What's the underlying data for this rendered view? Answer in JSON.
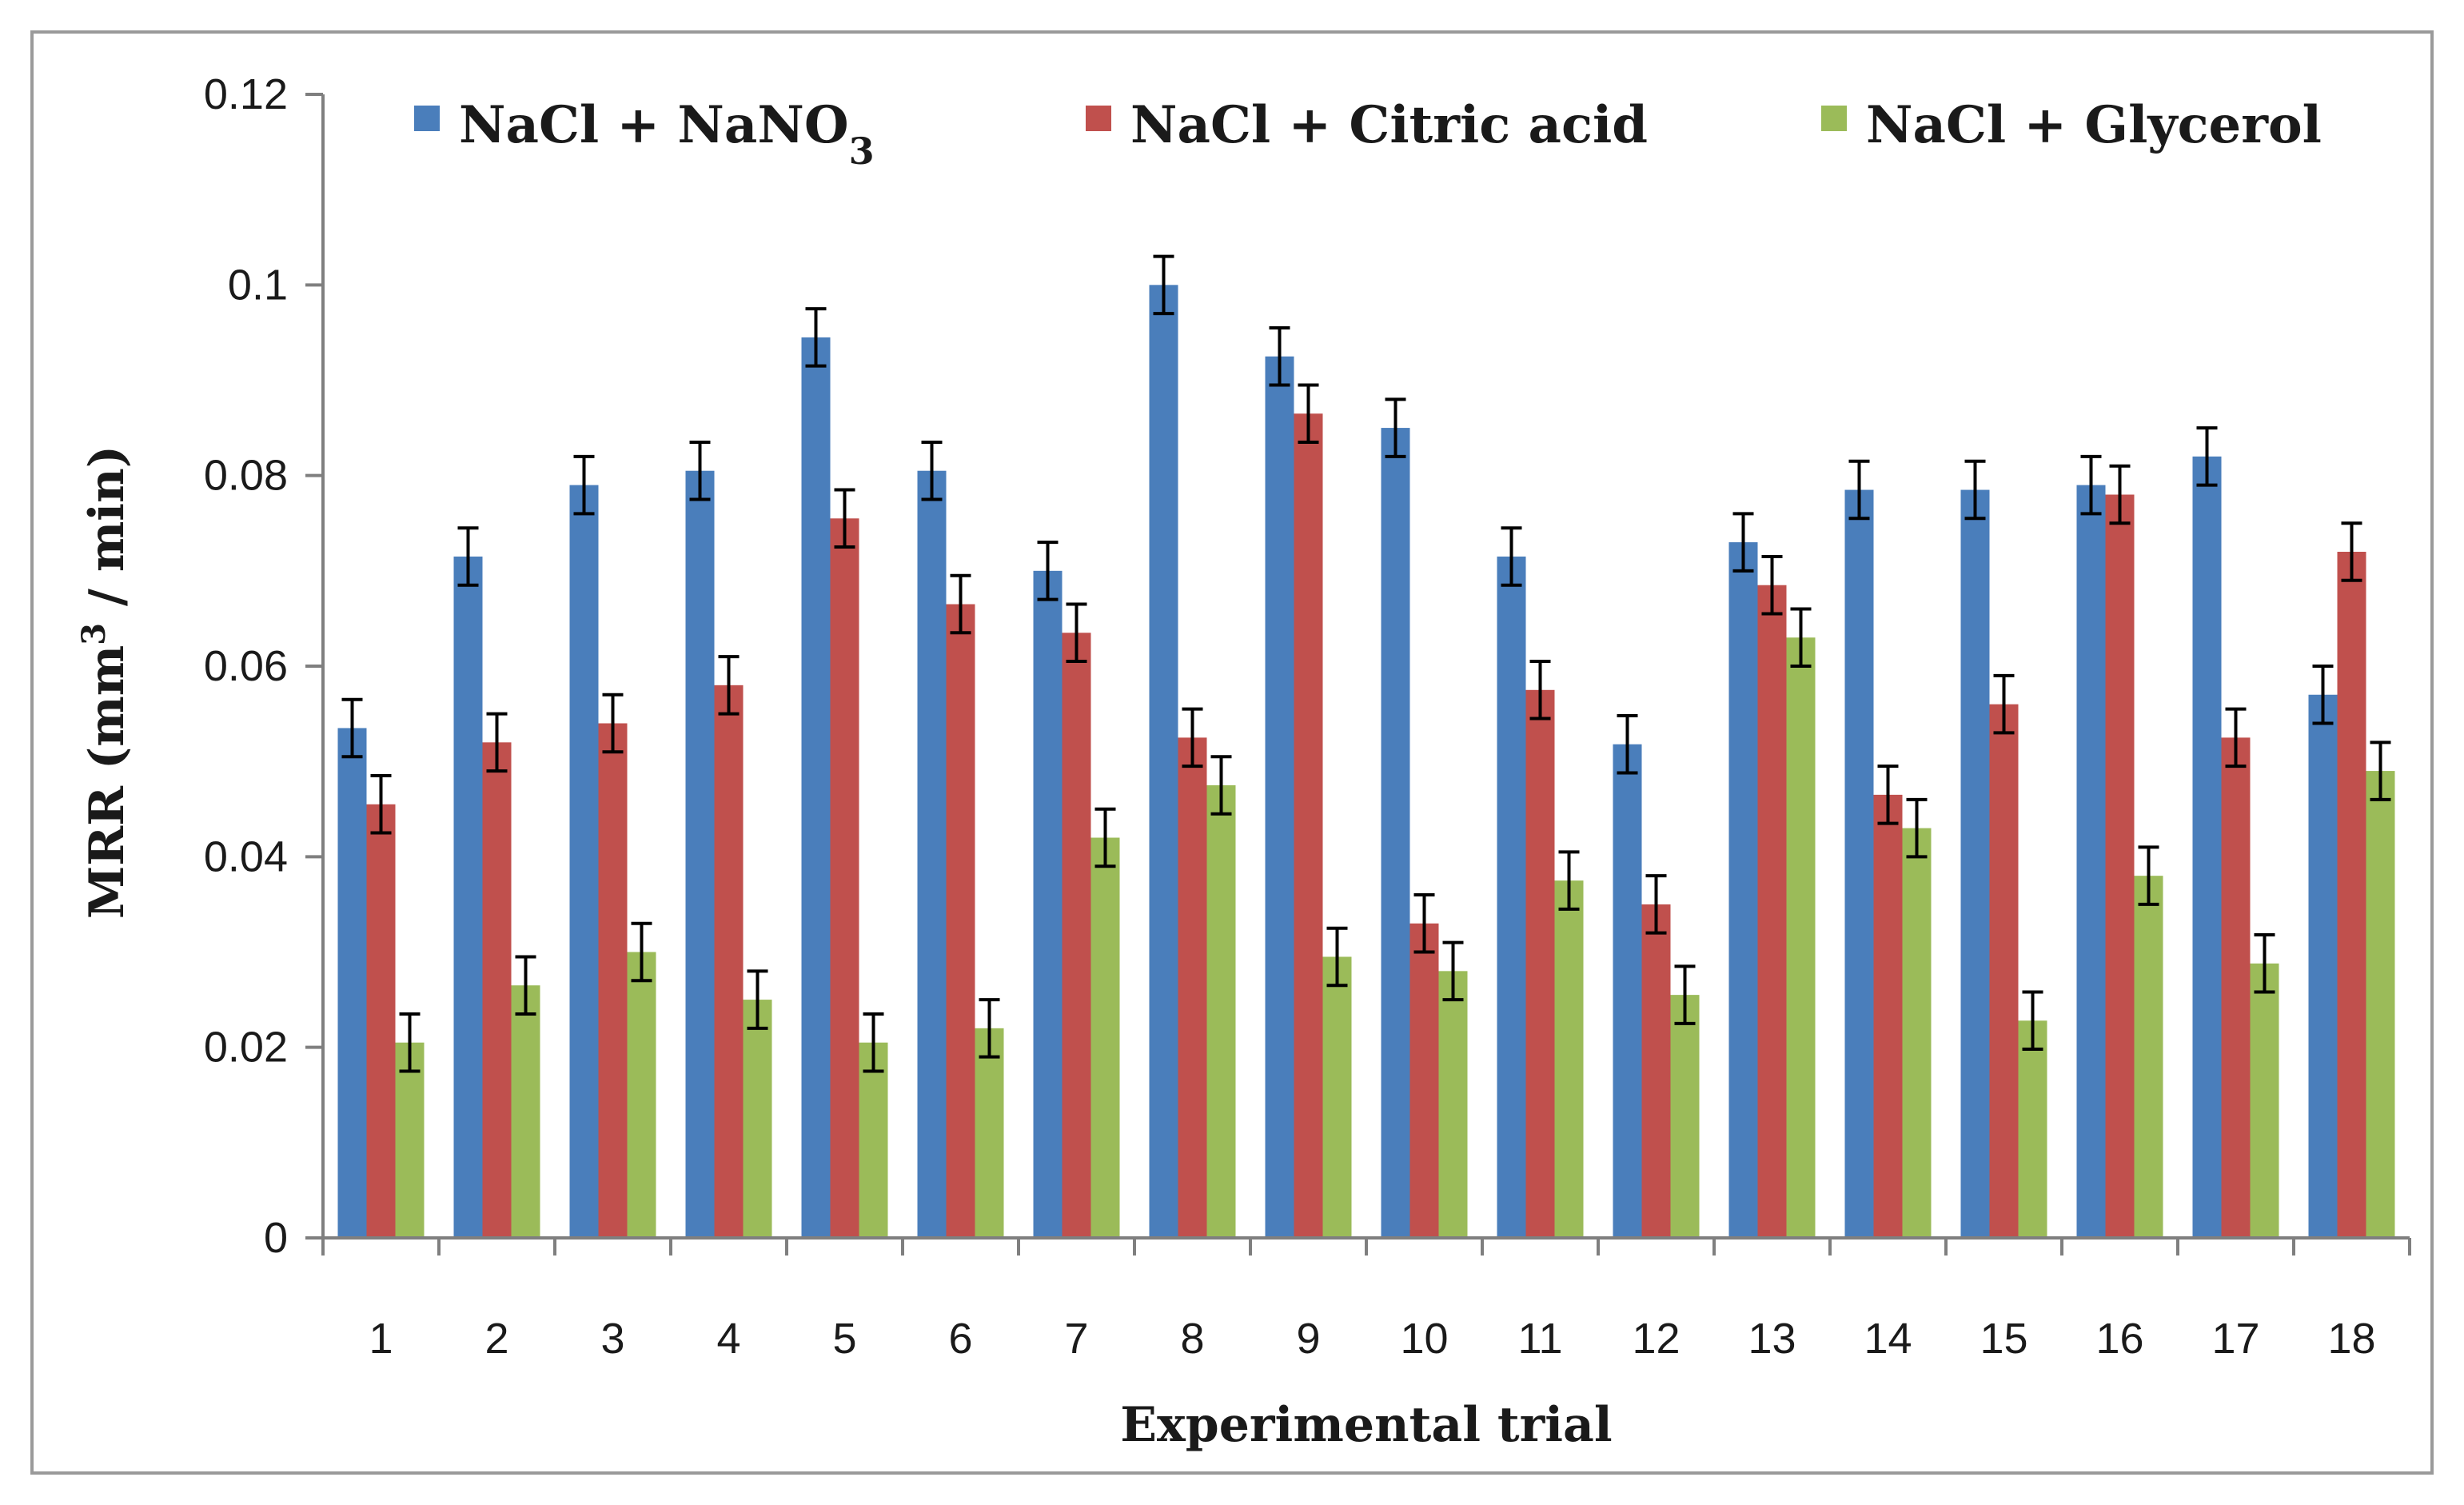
{
  "chart_data": {
    "type": "bar",
    "title": "",
    "xlabel": "Experimental trial",
    "ylabel": "MRR (mm",
    "ylabel_sup": "3",
    "ylabel_tail": " / min)",
    "ylim": [
      0,
      0.12
    ],
    "yticks": [
      0,
      0.02,
      0.04,
      0.06,
      0.08,
      0.1,
      0.12
    ],
    "ytick_labels": [
      "0",
      "0.02",
      "0.04",
      "0.06",
      "0.08",
      "0.1",
      "0.12"
    ],
    "grid": false,
    "legend_position": "top",
    "categories": [
      "1",
      "2",
      "3",
      "4",
      "5",
      "6",
      "7",
      "8",
      "9",
      "10",
      "11",
      "12",
      "13",
      "14",
      "15",
      "16",
      "17",
      "18"
    ],
    "series": [
      {
        "name": "NaCl + NaNO",
        "name_sub": "3",
        "color": "#4a7ebb",
        "values": [
          0.0535,
          0.0715,
          0.079,
          0.0805,
          0.0945,
          0.0805,
          0.07,
          0.1,
          0.0925,
          0.085,
          0.0715,
          0.0518,
          0.073,
          0.0785,
          0.0785,
          0.079,
          0.082,
          0.057
        ],
        "errors": [
          0.003,
          0.003,
          0.003,
          0.003,
          0.003,
          0.003,
          0.003,
          0.003,
          0.003,
          0.003,
          0.003,
          0.003,
          0.003,
          0.003,
          0.003,
          0.003,
          0.003,
          0.003
        ]
      },
      {
        "name": "NaCl + Citric acid",
        "color": "#c0504d",
        "values": [
          0.0455,
          0.052,
          0.054,
          0.058,
          0.0755,
          0.0665,
          0.0635,
          0.0525,
          0.0865,
          0.033,
          0.0575,
          0.035,
          0.0685,
          0.0465,
          0.056,
          0.078,
          0.0525,
          0.072
        ],
        "errors": [
          0.003,
          0.003,
          0.003,
          0.003,
          0.003,
          0.003,
          0.003,
          0.003,
          0.003,
          0.003,
          0.003,
          0.003,
          0.003,
          0.003,
          0.003,
          0.003,
          0.003,
          0.003
        ]
      },
      {
        "name": "NaCl + Glycerol",
        "color": "#9bbb59",
        "values": [
          0.0205,
          0.0265,
          0.03,
          0.025,
          0.0205,
          0.022,
          0.042,
          0.0475,
          0.0295,
          0.028,
          0.0375,
          0.0255,
          0.063,
          0.043,
          0.0228,
          0.038,
          0.0288,
          0.049
        ],
        "errors": [
          0.003,
          0.003,
          0.003,
          0.003,
          0.003,
          0.003,
          0.003,
          0.003,
          0.003,
          0.003,
          0.003,
          0.003,
          0.003,
          0.003,
          0.003,
          0.003,
          0.003,
          0.003
        ]
      }
    ]
  }
}
